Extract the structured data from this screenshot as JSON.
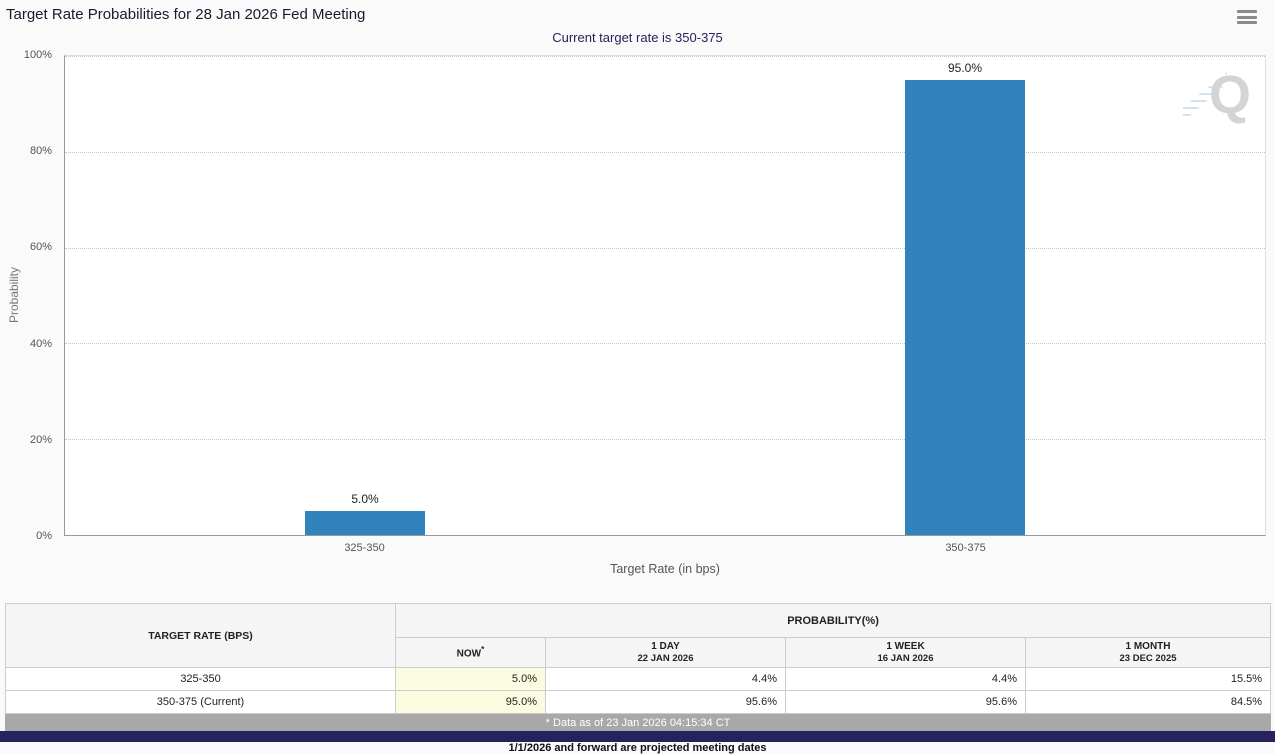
{
  "header": {
    "title": "Target Rate Probabilities for 28 Jan 2026 Fed Meeting"
  },
  "icons": {
    "menu": "hamburger-icon",
    "watermark": "quikstrike-q-logo"
  },
  "chart": {
    "subtitle": "Current target rate is 350-375",
    "watermark": "Q",
    "bar_color": "#3182bd"
  },
  "chart_data": {
    "type": "bar",
    "title": "Target Rate Probabilities for 28 Jan 2026 Fed Meeting",
    "subtitle": "Current target rate is 350-375",
    "categories": [
      "325-350",
      "350-375"
    ],
    "values": [
      5.0,
      95.0
    ],
    "labels": [
      "5.0%",
      "95.0%"
    ],
    "xlabel": "Target Rate (in bps)",
    "ylabel": "Probability",
    "ylim": [
      0,
      100
    ],
    "yticks": [
      "0%",
      "20%",
      "40%",
      "60%",
      "80%",
      "100%"
    ],
    "grid": true,
    "legend": false,
    "bar_color": "#3182bd"
  },
  "table": {
    "col1_header": "TARGET RATE (BPS)",
    "group_header": "PROBABILITY(%)",
    "columns": [
      {
        "label": "NOW",
        "sup": "*",
        "sub": ""
      },
      {
        "label": "1 DAY",
        "sup": "",
        "sub": "22 JAN 2026"
      },
      {
        "label": "1 WEEK",
        "sup": "",
        "sub": "16 JAN 2026"
      },
      {
        "label": "1 MONTH",
        "sup": "",
        "sub": "23 DEC 2025"
      }
    ],
    "rows": [
      {
        "rate": "325-350",
        "now": "5.0%",
        "one_day": "4.4%",
        "one_week": "4.4%",
        "one_month": "15.5%"
      },
      {
        "rate": "350-375 (Current)",
        "now": "95.0%",
        "one_day": "95.6%",
        "one_week": "95.6%",
        "one_month": "84.5%"
      }
    ],
    "footnote": "* Data as of 23 Jan 2026 04:15:34 CT",
    "now_highlight_color": "#fbfbe0"
  },
  "footer": {
    "note": "1/1/2026 and forward are projected meeting dates",
    "bar_color": "#26225c"
  }
}
